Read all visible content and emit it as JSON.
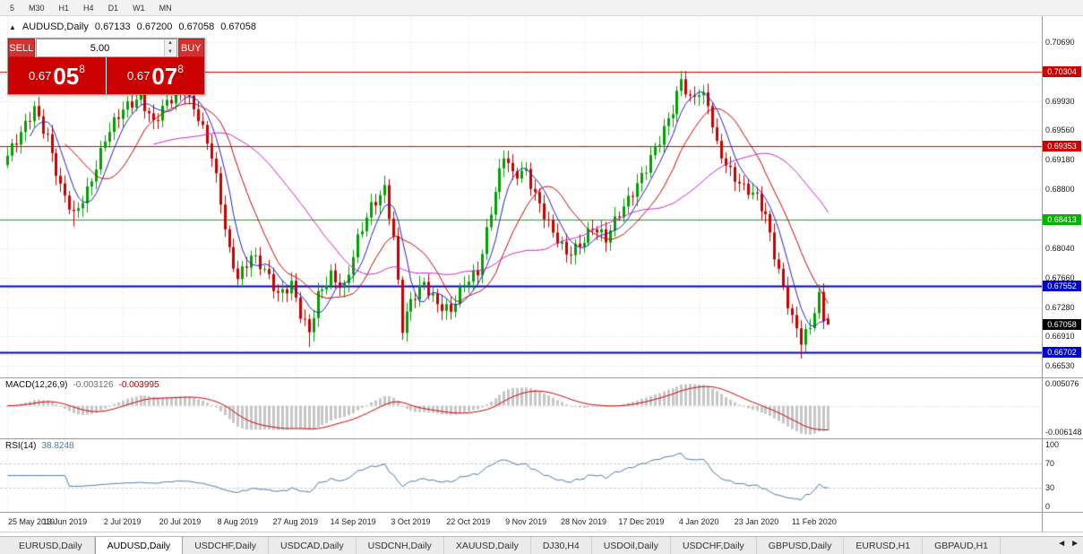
{
  "toolbar": {
    "timeframes": [
      "5",
      "M30",
      "H1",
      "H4",
      "D1",
      "W1",
      "MN"
    ]
  },
  "chart_header": {
    "symbol": "AUDUSD,Daily",
    "open": "0.67133",
    "high": "0.67200",
    "low": "0.67058",
    "close": "0.67058"
  },
  "trade_panel": {
    "sell_label": "SELL",
    "buy_label": "BUY",
    "lot_size": "5.00",
    "sell_price": {
      "prefix": "0.67",
      "big": "05",
      "sup": "8"
    },
    "buy_price": {
      "prefix": "0.67",
      "big": "07",
      "sup": "8"
    }
  },
  "price_axis": {
    "ticks": [
      {
        "label": "0.70690",
        "price": 0.7069
      },
      {
        "label": "0.69930",
        "price": 0.6993
      },
      {
        "label": "0.69560",
        "price": 0.6956
      },
      {
        "label": "0.69180",
        "price": 0.6918
      },
      {
        "label": "0.68800",
        "price": 0.688
      },
      {
        "label": "0.68040",
        "price": 0.6804
      },
      {
        "label": "0.67660",
        "price": 0.6766
      },
      {
        "label": "0.67280",
        "price": 0.6728
      },
      {
        "label": "0.66910",
        "price": 0.6691
      },
      {
        "label": "0.66530",
        "price": 0.6653
      }
    ],
    "badges": [
      {
        "label": "0.70304",
        "price": 0.70304,
        "color": "#cc0000"
      },
      {
        "label": "0.69353",
        "price": 0.69353,
        "color": "#cc0000"
      },
      {
        "label": "0.68413",
        "price": 0.68413,
        "color": "#00b400"
      },
      {
        "label": "0.67552",
        "price": 0.67552,
        "color": "#0000cc"
      },
      {
        "label": "0.67058",
        "price": 0.67058,
        "color": "#000000"
      },
      {
        "label": "0.66702",
        "price": 0.66702,
        "color": "#0000cc"
      }
    ]
  },
  "macd_panel": {
    "title": "MACD(12,26,9)",
    "value1": "-0.003126",
    "value2": "-0.003995",
    "axis_top": "0.005076",
    "axis_bottom": "-0.006148"
  },
  "rsi_panel": {
    "title": "RSI(14)",
    "value": "38.8248",
    "axis_labels": [
      "100",
      "70",
      "30",
      "0"
    ]
  },
  "date_axis": [
    "25 May 2019",
    "13 Jun 2019",
    "2 Jul 2019",
    "20 Jul 2019",
    "8 Aug 2019",
    "27 Aug 2019",
    "14 Sep 2019",
    "3 Oct 2019",
    "22 Oct 2019",
    "9 Nov 2019",
    "28 Nov 2019",
    "17 Dec 2019",
    "4 Jan 2020",
    "23 Jan 2020",
    "11 Feb 2020"
  ],
  "tabs": {
    "scroll_left": "◄",
    "scroll_right": "►",
    "items": [
      {
        "label": "EURUSD,Daily",
        "active": false
      },
      {
        "label": "AUDUSD,Daily",
        "active": true
      },
      {
        "label": "USDCHF,Daily",
        "active": false
      },
      {
        "label": "USDCAD,Daily",
        "active": false
      },
      {
        "label": "USDCNH,Daily",
        "active": false
      },
      {
        "label": "XAUUSD,Daily",
        "active": false
      },
      {
        "label": "DJ30,H4",
        "active": false
      },
      {
        "label": "USDOil,Daily",
        "active": false
      },
      {
        "label": "USDCHF,Daily",
        "active": false
      },
      {
        "label": "GBPUSD,Daily",
        "active": false
      },
      {
        "label": "EURUSD,H1",
        "active": false
      },
      {
        "label": "GBPAUD,H1",
        "active": false
      }
    ]
  },
  "chart_data": {
    "type": "candlestick",
    "symbol": "AUDUSD",
    "timeframe": "Daily",
    "bars_total": 186,
    "bars_per_label": 13,
    "y_gridline_prices": [
      0.7069,
      0.7031,
      0.6993,
      0.6956,
      0.6918,
      0.688,
      0.6842,
      0.6804,
      0.6766,
      0.6728,
      0.6691,
      0.6653
    ],
    "close_waypoints": [
      [
        0,
        0.6923
      ],
      [
        3,
        0.6948
      ],
      [
        6,
        0.6985
      ],
      [
        9,
        0.695
      ],
      [
        12,
        0.688
      ],
      [
        15,
        0.6843
      ],
      [
        18,
        0.688
      ],
      [
        22,
        0.6945
      ],
      [
        26,
        0.698
      ],
      [
        30,
        0.7003
      ],
      [
        33,
        0.6965
      ],
      [
        36,
        0.6988
      ],
      [
        40,
        0.701
      ],
      [
        43,
        0.6975
      ],
      [
        46,
        0.692
      ],
      [
        48,
        0.686
      ],
      [
        50,
        0.68
      ],
      [
        52,
        0.677
      ],
      [
        55,
        0.6795
      ],
      [
        58,
        0.6772
      ],
      [
        61,
        0.6745
      ],
      [
        64,
        0.6762
      ],
      [
        66,
        0.672
      ],
      [
        68,
        0.6692
      ],
      [
        70,
        0.674
      ],
      [
        73,
        0.6772
      ],
      [
        76,
        0.6755
      ],
      [
        79,
        0.6812
      ],
      [
        82,
        0.6856
      ],
      [
        85,
        0.6884
      ],
      [
        87,
        0.682
      ],
      [
        89,
        0.67
      ],
      [
        91,
        0.6732
      ],
      [
        94,
        0.676
      ],
      [
        97,
        0.6736
      ],
      [
        100,
        0.6722
      ],
      [
        103,
        0.6756
      ],
      [
        106,
        0.6776
      ],
      [
        109,
        0.6855
      ],
      [
        112,
        0.6922
      ],
      [
        114,
        0.6895
      ],
      [
        117,
        0.6905
      ],
      [
        120,
        0.6862
      ],
      [
        123,
        0.682
      ],
      [
        126,
        0.6795
      ],
      [
        129,
        0.6812
      ],
      [
        132,
        0.6832
      ],
      [
        135,
        0.6812
      ],
      [
        138,
        0.685
      ],
      [
        141,
        0.688
      ],
      [
        144,
        0.6906
      ],
      [
        147,
        0.694
      ],
      [
        150,
        0.6985
      ],
      [
        152,
        0.7025
      ],
      [
        154,
        0.6995
      ],
      [
        156,
        0.7002
      ],
      [
        158,
        0.6986
      ],
      [
        160,
        0.6936
      ],
      [
        163,
        0.6906
      ],
      [
        166,
        0.688
      ],
      [
        169,
        0.6866
      ],
      [
        171,
        0.6846
      ],
      [
        173,
        0.68
      ],
      [
        175,
        0.6756
      ],
      [
        177,
        0.6712
      ],
      [
        179,
        0.6682
      ],
      [
        181,
        0.67
      ],
      [
        182,
        0.6726
      ],
      [
        183,
        0.6744
      ],
      [
        184,
        0.6716
      ],
      [
        185,
        0.67058
      ]
    ],
    "spike_highs": [
      [
        6,
        0.6993
      ],
      [
        30,
        0.7015
      ],
      [
        40,
        0.7022
      ],
      [
        112,
        0.693
      ],
      [
        152,
        0.7032
      ]
    ],
    "spike_lows": [
      [
        15,
        0.6832
      ],
      [
        68,
        0.6677
      ],
      [
        89,
        0.6688
      ],
      [
        179,
        0.6662
      ]
    ],
    "last_bar": {
      "open": 0.67133,
      "high": 0.672,
      "low": 0.67058,
      "close": 0.67058
    },
    "levels": [
      {
        "price": 0.70304,
        "color": "#cc0000",
        "width": 1
      },
      {
        "price": 0.69353,
        "color": "#cc0000",
        "width": 1
      },
      {
        "price": 0.68413,
        "color": "#00c000",
        "width": 1
      },
      {
        "price": 0.67552,
        "color": "#0000cc",
        "width": 2
      },
      {
        "price": 0.66702,
        "color": "#0000cc",
        "width": 2
      }
    ],
    "moving_averages": [
      {
        "period": 6,
        "color": "#2222c8"
      },
      {
        "period": 14,
        "color": "#cc0000"
      },
      {
        "period": 34,
        "color": "#cc22cc"
      }
    ],
    "candle_colors": {
      "up": "#00a000",
      "down": "#c80000"
    },
    "indicators": {
      "macd": {
        "fast": 12,
        "slow": 26,
        "signal": 9,
        "value_main": -0.003126,
        "value_signal": -0.003995,
        "axis_max": 0.005076,
        "axis_min": -0.006148,
        "histogram_color": "#c6c6c6",
        "signal_color": "#cc0000"
      },
      "rsi": {
        "period": 14,
        "value": 38.8248,
        "levels": [
          70,
          30
        ],
        "axis_labels": [
          100,
          70,
          30,
          0
        ],
        "line_color": "#4d79a7"
      }
    }
  }
}
